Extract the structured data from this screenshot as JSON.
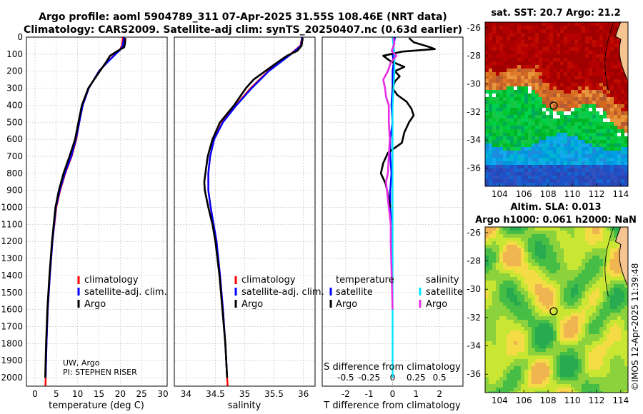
{
  "header": {
    "line1": "Argo profile: aoml 5904789_311 07-Apr-2025 31.55S 108.46E (NRT data)",
    "line2": "Climatology: CARS2009. Satellite-adj clim: synTS_20250407.nc (0.63d earlier)"
  },
  "colors": {
    "climatology": "#ff0000",
    "satellite": "#0000ff",
    "argo": "#000000",
    "satellite_s": "#00e5ff",
    "argo_s": "#e62ee6"
  },
  "credits": {
    "line1": "UW, Argo",
    "line2": "PI: STEPHEN RISER"
  },
  "footer": {
    "imos": "©IMOS 12-Apr-2025 11:39:48"
  },
  "sst_map": {
    "title": "sat. SST: 20.7 Argo: 21.2",
    "lat_ticks": [
      -26,
      -28,
      -30,
      -32,
      -34,
      -36
    ],
    "lon_ticks": [
      104,
      106,
      108,
      110,
      112,
      114
    ],
    "marker": {
      "lon": 108.46,
      "lat": -31.55
    }
  },
  "sla_map": {
    "title1": "Altim. SLA: 0.013",
    "title2": "Argo h1000: 0.061 h2000: NaN",
    "lat_ticks": [
      -26,
      -28,
      -30,
      -32,
      -34,
      -36
    ],
    "lon_ticks": [
      104,
      106,
      108,
      110,
      112,
      114
    ],
    "marker": {
      "lon": 108.46,
      "lat": -31.55
    }
  },
  "chart_data": [
    {
      "type": "line",
      "panel": "temperature",
      "xlabel": "temperature (deg C)",
      "ylabel": "",
      "xlim": [
        -2,
        31
      ],
      "ylim": [
        2050,
        0
      ],
      "xticks": [
        0,
        5,
        10,
        15,
        20,
        25,
        30
      ],
      "yticks": [
        0,
        100,
        200,
        300,
        400,
        500,
        600,
        700,
        800,
        900,
        1000,
        1100,
        1200,
        1300,
        1400,
        1500,
        1600,
        1700,
        1800,
        1900,
        2000
      ],
      "legend": [
        "climatology",
        "satellite-adj. clim.",
        "Argo"
      ],
      "series": [
        {
          "name": "climatology",
          "color": "#ff0000",
          "depth": [
            0,
            50,
            75,
            100,
            150,
            200,
            300,
            400,
            500,
            600,
            700,
            800,
            900,
            1000,
            1200,
            1400,
            1600,
            1800,
            2000,
            2050
          ],
          "values": [
            20.6,
            20.4,
            19.9,
            18.8,
            16.8,
            15.0,
            12.6,
            11.2,
            10.4,
            9.7,
            8.6,
            7.1,
            5.9,
            5.0,
            4.1,
            3.5,
            3.0,
            2.7,
            2.5,
            2.45
          ]
        },
        {
          "name": "satellite-adj. clim.",
          "color": "#0000ff",
          "depth": [
            0,
            50,
            75,
            100,
            150,
            200,
            300,
            400,
            500,
            600,
            700,
            800,
            900,
            1000,
            1200,
            1400,
            1600,
            1800,
            2000
          ],
          "values": [
            20.9,
            20.6,
            20.0,
            18.9,
            16.9,
            15.0,
            12.6,
            11.2,
            10.4,
            9.6,
            8.5,
            7.0,
            5.8,
            4.9,
            4.1,
            3.5,
            3.0,
            2.7,
            2.5
          ]
        },
        {
          "name": "Argo",
          "color": "#000000",
          "depth": [
            5,
            40,
            60,
            75,
            90,
            110,
            150,
            200,
            300,
            400,
            500,
            600,
            700,
            800,
            900,
            1000,
            1200,
            1400,
            1600,
            1800,
            2000
          ],
          "values": [
            21.2,
            21.1,
            20.9,
            19.8,
            18.8,
            17.6,
            16.6,
            15.2,
            12.5,
            11.0,
            10.2,
            9.4,
            8.1,
            6.7,
            5.6,
            4.8,
            4.0,
            3.4,
            2.9,
            2.6,
            2.4
          ]
        }
      ]
    },
    {
      "type": "line",
      "panel": "salinity",
      "xlabel": "salinity",
      "ylabel": "",
      "xlim": [
        33.8,
        36.2
      ],
      "ylim": [
        2050,
        0
      ],
      "xticks": [
        34,
        34.5,
        35,
        35.5,
        36
      ],
      "legend": [
        "climatology",
        "satellite-adj. clim.",
        "Argo"
      ],
      "series": [
        {
          "name": "climatology",
          "color": "#ff0000",
          "depth": [
            0,
            50,
            100,
            150,
            200,
            300,
            400,
            500,
            600,
            700,
            800,
            900,
            1000,
            1100,
            1200,
            1400,
            1600,
            1800,
            2000,
            2050
          ],
          "values": [
            35.98,
            35.95,
            35.78,
            35.58,
            35.4,
            35.1,
            34.85,
            34.62,
            34.48,
            34.41,
            34.38,
            34.38,
            34.42,
            34.47,
            34.52,
            34.58,
            34.63,
            34.67,
            34.7,
            34.71
          ]
        },
        {
          "name": "satellite-adj. clim.",
          "color": "#0000ff",
          "depth": [
            0,
            50,
            100,
            150,
            200,
            300,
            400,
            500,
            600,
            700,
            800,
            900,
            1000,
            1100,
            1200,
            1400,
            1600,
            1800,
            2000
          ],
          "values": [
            35.98,
            35.96,
            35.79,
            35.6,
            35.41,
            35.12,
            34.86,
            34.63,
            34.48,
            34.41,
            34.38,
            34.38,
            34.42,
            34.47,
            34.52,
            34.58,
            34.63,
            34.67,
            34.7
          ]
        },
        {
          "name": "Argo",
          "color": "#000000",
          "depth": [
            5,
            50,
            80,
            110,
            150,
            200,
            250,
            300,
            350,
            400,
            500,
            600,
            700,
            800,
            850,
            900,
            1000,
            1100,
            1200,
            1400,
            1600,
            1800,
            2000
          ],
          "values": [
            35.99,
            35.97,
            35.9,
            35.72,
            35.55,
            35.35,
            35.15,
            35.02,
            34.92,
            34.82,
            34.58,
            34.45,
            34.37,
            34.33,
            34.31,
            34.32,
            34.38,
            34.45,
            34.5,
            34.57,
            34.62,
            34.67,
            34.7
          ]
        }
      ]
    },
    {
      "type": "line",
      "panel": "difference",
      "xlabel": "T difference from climatology",
      "xlabel_top": "S difference from climatology",
      "xlim": [
        -3,
        3
      ],
      "ylim": [
        2050,
        0
      ],
      "xticks": [
        -2,
        -1,
        0,
        1,
        2
      ],
      "s_ticks": [
        -0.5,
        -0.25,
        0,
        0.25,
        0.5
      ],
      "legend_t_title": "temperature",
      "legend_s_title": "salinity",
      "legend_t": [
        "satellite",
        "Argo"
      ],
      "legend_s": [
        "satellite",
        "Argo"
      ],
      "series": [
        {
          "name": "T satellite",
          "color": "#0000ff",
          "depth": [
            0,
            50,
            100,
            150,
            200,
            300,
            400,
            500,
            600,
            700,
            800,
            900,
            1000,
            1100,
            1200,
            1300
          ],
          "values": [
            0.1,
            0.05,
            0.0,
            0.05,
            0.0,
            0.0,
            -0.05,
            0.0,
            -0.1,
            -0.1,
            -0.05,
            -0.1,
            -0.1,
            -0.05,
            -0.05,
            0.0
          ]
        },
        {
          "name": "T Argo",
          "color": "#000000",
          "depth": [
            5,
            30,
            55,
            70,
            85,
            110,
            140,
            175,
            200,
            230,
            260,
            300,
            340,
            380,
            420,
            460,
            500,
            560,
            620,
            680,
            740,
            800,
            860,
            920,
            1000
          ],
          "values": [
            0.7,
            0.9,
            1.5,
            1.8,
            0.4,
            -0.4,
            -0.1,
            0.5,
            0.1,
            0.3,
            0.1,
            0.0,
            0.2,
            0.6,
            0.8,
            0.9,
            0.7,
            0.5,
            0.4,
            -0.2,
            -0.4,
            -0.5,
            -0.3,
            -0.2,
            -0.1
          ]
        },
        {
          "name": "S satellite",
          "color": "#00e5ff",
          "depth": [
            0,
            100,
            200,
            300,
            400,
            500,
            600,
            700,
            800,
            900,
            1000,
            1200,
            1400,
            1600,
            1800,
            2000
          ],
          "values": [
            0.0,
            0.02,
            0.02,
            0.01,
            0.0,
            0.0,
            0.0,
            0.0,
            0.0,
            0.0,
            0.0,
            0.0,
            0.0,
            0.0,
            0.0,
            0.0
          ]
        },
        {
          "name": "S Argo",
          "color": "#e62ee6",
          "depth": [
            5,
            40,
            80,
            110,
            150,
            200,
            250,
            300,
            350,
            400,
            500,
            600,
            700,
            800,
            850,
            900,
            1000,
            1100,
            1200,
            1400,
            1600
          ],
          "values": [
            0.01,
            0.02,
            -0.01,
            0.04,
            -0.02,
            -0.05,
            -0.1,
            -0.08,
            -0.07,
            -0.04,
            -0.04,
            -0.03,
            -0.04,
            -0.05,
            -0.07,
            -0.06,
            -0.04,
            -0.02,
            -0.02,
            -0.01,
            0.0
          ]
        }
      ]
    }
  ]
}
